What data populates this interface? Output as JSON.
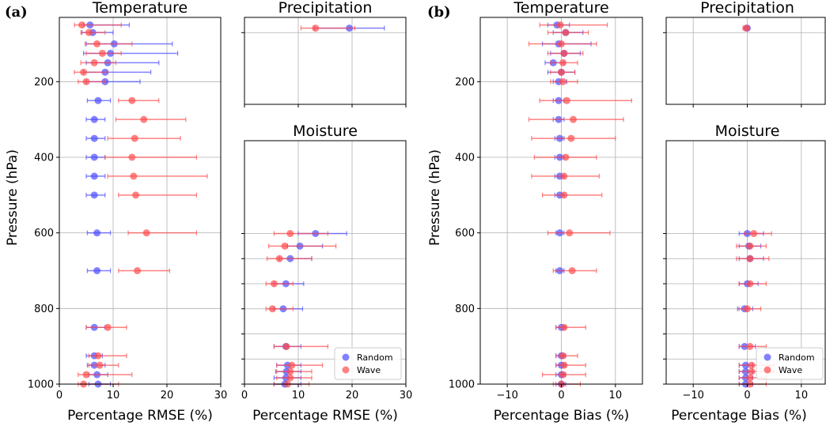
{
  "figure": {
    "panel_labels": [
      "(a)",
      "(b)"
    ],
    "ylabel": "Pressure (hPa)",
    "legend": [
      {
        "name": "Random",
        "color": "#4c4cff"
      },
      {
        "name": "Wave",
        "color": "#ff4c4c"
      }
    ]
  },
  "chart_data": [
    {
      "id": "a-temp",
      "type": "scatter",
      "title": "Temperature",
      "xlabel": "Percentage RMSE (%)",
      "xlim": [
        0,
        30
      ],
      "ylim": [
        1000,
        30
      ],
      "xticks": [
        0,
        10,
        20,
        30
      ],
      "yticks": [
        200,
        400,
        600,
        800,
        1000
      ],
      "ytick_labels": true,
      "series": [
        {
          "name": "Random",
          "color": "#4c4cff",
          "points": [
            {
              "y": 50,
              "x": 5.7,
              "lo": 4.5,
              "hi": 13.0
            },
            {
              "y": 70,
              "x": 6.2,
              "lo": 4.2,
              "hi": 10.0
            },
            {
              "y": 100,
              "x": 10.2,
              "lo": 5.0,
              "hi": 21.0
            },
            {
              "y": 125,
              "x": 9.5,
              "lo": 4.5,
              "hi": 22.0
            },
            {
              "y": 150,
              "x": 9.0,
              "lo": 5.0,
              "hi": 18.5
            },
            {
              "y": 175,
              "x": 8.5,
              "lo": 4.5,
              "hi": 17.0
            },
            {
              "y": 200,
              "x": 8.5,
              "lo": 5.0,
              "hi": 15.0
            },
            {
              "y": 250,
              "x": 7.2,
              "lo": 5.2,
              "hi": 9.5
            },
            {
              "y": 300,
              "x": 6.5,
              "lo": 5.0,
              "hi": 8.5
            },
            {
              "y": 350,
              "x": 6.5,
              "lo": 5.0,
              "hi": 8.5
            },
            {
              "y": 400,
              "x": 6.5,
              "lo": 5.0,
              "hi": 8.5
            },
            {
              "y": 450,
              "x": 6.5,
              "lo": 5.0,
              "hi": 8.5
            },
            {
              "y": 500,
              "x": 6.5,
              "lo": 5.0,
              "hi": 8.5
            },
            {
              "y": 600,
              "x": 7.0,
              "lo": 5.2,
              "hi": 9.5
            },
            {
              "y": 700,
              "x": 7.0,
              "lo": 5.2,
              "hi": 9.5
            },
            {
              "y": 850,
              "x": 6.5,
              "lo": 5.0,
              "hi": 8.5
            },
            {
              "y": 925,
              "x": 6.5,
              "lo": 5.0,
              "hi": 8.0
            },
            {
              "y": 950,
              "x": 6.5,
              "lo": 5.2,
              "hi": 8.5
            },
            {
              "y": 975,
              "x": 7.0,
              "lo": 5.5,
              "hi": 9.0
            },
            {
              "y": 1000,
              "x": 7.2,
              "lo": 5.5,
              "hi": 9.5
            }
          ]
        },
        {
          "name": "Wave",
          "color": "#ff4c4c",
          "points": [
            {
              "y": 50,
              "x": 4.2,
              "lo": 2.8,
              "hi": 11.5
            },
            {
              "y": 70,
              "x": 5.5,
              "lo": 4.0,
              "hi": 8.5
            },
            {
              "y": 100,
              "x": 7.0,
              "lo": 4.8,
              "hi": 13.5
            },
            {
              "y": 125,
              "x": 8.0,
              "lo": 5.0,
              "hi": 11.5
            },
            {
              "y": 150,
              "x": 6.5,
              "lo": 4.0,
              "hi": 10.5
            },
            {
              "y": 175,
              "x": 4.5,
              "lo": 2.8,
              "hi": 9.0
            },
            {
              "y": 200,
              "x": 5.0,
              "lo": 3.5,
              "hi": 8.5
            },
            {
              "y": 250,
              "x": 13.5,
              "lo": 11.0,
              "hi": 18.5
            },
            {
              "y": 300,
              "x": 15.7,
              "lo": 10.5,
              "hi": 23.5
            },
            {
              "y": 350,
              "x": 14.0,
              "lo": 9.0,
              "hi": 22.5
            },
            {
              "y": 400,
              "x": 13.5,
              "lo": 8.5,
              "hi": 25.5
            },
            {
              "y": 450,
              "x": 13.8,
              "lo": 9.0,
              "hi": 27.5
            },
            {
              "y": 500,
              "x": 14.2,
              "lo": 11.0,
              "hi": 25.5
            },
            {
              "y": 600,
              "x": 16.2,
              "lo": 12.8,
              "hi": 25.5
            },
            {
              "y": 700,
              "x": 14.5,
              "lo": 11.0,
              "hi": 20.5
            },
            {
              "y": 850,
              "x": 9.0,
              "lo": 5.0,
              "hi": 12.5
            },
            {
              "y": 925,
              "x": 7.2,
              "lo": 5.5,
              "hi": 12.5
            },
            {
              "y": 950,
              "x": 7.5,
              "lo": 5.5,
              "hi": 11.0
            },
            {
              "y": 975,
              "x": 5.0,
              "lo": 3.5,
              "hi": 13.5
            },
            {
              "y": 1000,
              "x": 4.5,
              "lo": 3.5,
              "hi": 11.0
            }
          ]
        }
      ]
    },
    {
      "id": "a-precip",
      "type": "scatter",
      "title": "Precipitation",
      "xlabel": "",
      "xlim": [
        0,
        30
      ],
      "ylim": [
        1000,
        30
      ],
      "xticks": [
        0,
        10,
        20,
        30
      ],
      "yticks": [
        200
      ],
      "ytick_labels": false,
      "series": [
        {
          "name": "Random",
          "color": "#4c4cff",
          "points": [
            {
              "y": 150,
              "x": 19.5,
              "lo": 13.0,
              "hi": 26.0
            }
          ]
        },
        {
          "name": "Wave",
          "color": "#ff4c4c",
          "points": [
            {
              "y": 150,
              "x": 13.2,
              "lo": 10.5,
              "hi": 20.5
            }
          ]
        }
      ]
    },
    {
      "id": "a-moist",
      "type": "scatter",
      "title": "Moisture",
      "xlabel": "Percentage RMSE (%)",
      "xlim": [
        0,
        30
      ],
      "ylim": [
        1000,
        30
      ],
      "xticks": [
        0,
        10,
        20,
        30
      ],
      "yticks": [
        400,
        500,
        600,
        700,
        800,
        900,
        1000
      ],
      "ytick_labels": false,
      "legend": true,
      "series": [
        {
          "name": "Random",
          "color": "#4c4cff",
          "points": [
            {
              "y": 400,
              "x": 13.2,
              "lo": 10.0,
              "hi": 19.0
            },
            {
              "y": 450,
              "x": 10.3,
              "lo": 8.0,
              "hi": 14.5
            },
            {
              "y": 500,
              "x": 8.5,
              "lo": 6.5,
              "hi": 12.5
            },
            {
              "y": 600,
              "x": 7.7,
              "lo": 5.5,
              "hi": 11.0
            },
            {
              "y": 700,
              "x": 7.2,
              "lo": 5.5,
              "hi": 10.8
            },
            {
              "y": 850,
              "x": 7.7,
              "lo": 5.5,
              "hi": 10.5
            },
            {
              "y": 925,
              "x": 8.0,
              "lo": 6.0,
              "hi": 10.5
            },
            {
              "y": 950,
              "x": 7.8,
              "lo": 5.8,
              "hi": 10.5
            },
            {
              "y": 975,
              "x": 7.7,
              "lo": 5.5,
              "hi": 10.5
            },
            {
              "y": 1000,
              "x": 7.5,
              "lo": 5.5,
              "hi": 10.5
            }
          ]
        },
        {
          "name": "Wave",
          "color": "#ff4c4c",
          "points": [
            {
              "y": 400,
              "x": 8.5,
              "lo": 5.5,
              "hi": 15.5
            },
            {
              "y": 450,
              "x": 7.5,
              "lo": 4.5,
              "hi": 17.0
            },
            {
              "y": 500,
              "x": 6.5,
              "lo": 4.2,
              "hi": 12.5
            },
            {
              "y": 600,
              "x": 5.5,
              "lo": 4.0,
              "hi": 9.0
            },
            {
              "y": 700,
              "x": 5.2,
              "lo": 4.0,
              "hi": 9.0
            },
            {
              "y": 850,
              "x": 7.8,
              "lo": 5.5,
              "hi": 15.5
            },
            {
              "y": 925,
              "x": 8.8,
              "lo": 6.0,
              "hi": 14.5
            },
            {
              "y": 950,
              "x": 8.5,
              "lo": 6.0,
              "hi": 12.5
            },
            {
              "y": 975,
              "x": 8.5,
              "lo": 6.0,
              "hi": 12.5
            },
            {
              "y": 1000,
              "x": 8.0,
              "lo": 5.5,
              "hi": 12.0
            }
          ]
        }
      ]
    },
    {
      "id": "b-temp",
      "type": "scatter",
      "title": "Temperature",
      "xlabel": "Percentage Bias (%)",
      "xlim": [
        -15,
        15
      ],
      "ylim": [
        1000,
        30
      ],
      "xticks": [
        -10,
        0,
        10
      ],
      "yticks": [
        200,
        400,
        600,
        800,
        1000
      ],
      "ytick_labels": true,
      "series": [
        {
          "name": "Random",
          "color": "#4c4cff",
          "points": [
            {
              "y": 50,
              "x": -0.8,
              "lo": -2.5,
              "hi": 1.5
            },
            {
              "y": 70,
              "x": 0.8,
              "lo": -1.5,
              "hi": 4.0
            },
            {
              "y": 100,
              "x": -0.5,
              "lo": -3.5,
              "hi": 5.5
            },
            {
              "y": 125,
              "x": 0.5,
              "lo": -2.0,
              "hi": 3.5
            },
            {
              "y": 150,
              "x": -1.5,
              "lo": -3.0,
              "hi": 0.5
            },
            {
              "y": 175,
              "x": 0.0,
              "lo": -2.5,
              "hi": 2.5
            },
            {
              "y": 200,
              "x": -0.5,
              "lo": -1.5,
              "hi": 1.0
            },
            {
              "y": 250,
              "x": -0.5,
              "lo": -1.5,
              "hi": 0.5
            },
            {
              "y": 300,
              "x": -0.5,
              "lo": -1.5,
              "hi": 0.5
            },
            {
              "y": 350,
              "x": -0.3,
              "lo": -1.2,
              "hi": 0.5
            },
            {
              "y": 400,
              "x": -0.3,
              "lo": -1.2,
              "hi": 0.5
            },
            {
              "y": 450,
              "x": -0.3,
              "lo": -1.2,
              "hi": 0.5
            },
            {
              "y": 500,
              "x": -0.3,
              "lo": -1.2,
              "hi": 0.5
            },
            {
              "y": 600,
              "x": -0.3,
              "lo": -1.0,
              "hi": 0.5
            },
            {
              "y": 700,
              "x": -0.3,
              "lo": -1.0,
              "hi": 0.5
            },
            {
              "y": 850,
              "x": 0.0,
              "lo": -1.0,
              "hi": 0.8
            },
            {
              "y": 925,
              "x": 0.0,
              "lo": -1.0,
              "hi": 0.8
            },
            {
              "y": 950,
              "x": 0.0,
              "lo": -1.0,
              "hi": 0.8
            },
            {
              "y": 975,
              "x": 0.0,
              "lo": -1.0,
              "hi": 0.8
            },
            {
              "y": 1000,
              "x": 0.0,
              "lo": -1.0,
              "hi": 0.8
            }
          ]
        },
        {
          "name": "Wave",
          "color": "#ff4c4c",
          "points": [
            {
              "y": 50,
              "x": -0.2,
              "lo": -4.0,
              "hi": 8.5
            },
            {
              "y": 70,
              "x": 0.8,
              "lo": -2.5,
              "hi": 5.0
            },
            {
              "y": 100,
              "x": 0.0,
              "lo": -6.0,
              "hi": 6.5
            },
            {
              "y": 125,
              "x": 0.5,
              "lo": -2.5,
              "hi": 4.0
            },
            {
              "y": 150,
              "x": 0.3,
              "lo": -2.0,
              "hi": 3.0
            },
            {
              "y": 175,
              "x": 0.0,
              "lo": -2.0,
              "hi": 2.5
            },
            {
              "y": 200,
              "x": 0.3,
              "lo": -2.0,
              "hi": 3.0
            },
            {
              "y": 250,
              "x": 1.0,
              "lo": -4.0,
              "hi": 13.0
            },
            {
              "y": 300,
              "x": 2.2,
              "lo": -6.0,
              "hi": 11.5
            },
            {
              "y": 350,
              "x": 1.8,
              "lo": -5.5,
              "hi": 10.0
            },
            {
              "y": 400,
              "x": 0.8,
              "lo": -5.0,
              "hi": 6.5
            },
            {
              "y": 450,
              "x": 0.5,
              "lo": -5.5,
              "hi": 7.0
            },
            {
              "y": 500,
              "x": 0.5,
              "lo": -3.5,
              "hi": 7.5
            },
            {
              "y": 600,
              "x": 1.5,
              "lo": -2.5,
              "hi": 9.0
            },
            {
              "y": 700,
              "x": 2.0,
              "lo": -1.5,
              "hi": 6.5
            },
            {
              "y": 850,
              "x": 0.5,
              "lo": -1.0,
              "hi": 4.5
            },
            {
              "y": 925,
              "x": 0.3,
              "lo": -1.0,
              "hi": 3.0
            },
            {
              "y": 950,
              "x": 0.5,
              "lo": -1.0,
              "hi": 4.5
            },
            {
              "y": 975,
              "x": 0.3,
              "lo": -3.5,
              "hi": 4.5
            },
            {
              "y": 1000,
              "x": 0.0,
              "lo": -1.5,
              "hi": 3.5
            }
          ]
        }
      ]
    },
    {
      "id": "b-precip",
      "type": "scatter",
      "title": "Precipitation",
      "xlabel": "",
      "xlim": [
        -15,
        15
      ],
      "ylim": [
        1000,
        30
      ],
      "xticks": [
        -10,
        0,
        10
      ],
      "yticks": [
        200
      ],
      "ytick_labels": false,
      "series": [
        {
          "name": "Random",
          "color": "#4c4cff",
          "points": [
            {
              "y": 150,
              "x": 0.0,
              "lo": -0.5,
              "hi": 0.3
            }
          ]
        },
        {
          "name": "Wave",
          "color": "#ff4c4c",
          "points": [
            {
              "y": 150,
              "x": -0.2,
              "lo": -0.8,
              "hi": 0.3
            }
          ]
        }
      ]
    },
    {
      "id": "b-moist",
      "type": "scatter",
      "title": "Moisture",
      "xlabel": "Percentage Bias (%)",
      "xlim": [
        -15,
        15
      ],
      "ylim": [
        1000,
        30
      ],
      "xticks": [
        -10,
        0,
        10
      ],
      "yticks": [
        400,
        500,
        600,
        700,
        800,
        900,
        1000
      ],
      "ytick_labels": false,
      "legend": true,
      "series": [
        {
          "name": "Random",
          "color": "#4c4cff",
          "points": [
            {
              "y": 400,
              "x": 0.0,
              "lo": -1.5,
              "hi": 3.0
            },
            {
              "y": 450,
              "x": 0.3,
              "lo": -1.5,
              "hi": 2.5
            },
            {
              "y": 500,
              "x": 0.5,
              "lo": -1.5,
              "hi": 3.0
            },
            {
              "y": 600,
              "x": 0.0,
              "lo": -1.5,
              "hi": 2.0
            },
            {
              "y": 700,
              "x": -0.5,
              "lo": -1.8,
              "hi": 1.0
            },
            {
              "y": 850,
              "x": -0.5,
              "lo": -1.5,
              "hi": 1.5
            },
            {
              "y": 925,
              "x": -0.3,
              "lo": -1.5,
              "hi": 1.0
            },
            {
              "y": 950,
              "x": -0.3,
              "lo": -1.5,
              "hi": 1.0
            },
            {
              "y": 975,
              "x": -0.3,
              "lo": -1.5,
              "hi": 1.0
            },
            {
              "y": 1000,
              "x": -0.3,
              "lo": -1.5,
              "hi": 1.0
            }
          ]
        },
        {
          "name": "Wave",
          "color": "#ff4c4c",
          "points": [
            {
              "y": 400,
              "x": 1.2,
              "lo": -0.5,
              "hi": 4.5
            },
            {
              "y": 450,
              "x": 0.5,
              "lo": -2.0,
              "hi": 3.5
            },
            {
              "y": 500,
              "x": 0.5,
              "lo": -2.0,
              "hi": 4.0
            },
            {
              "y": 600,
              "x": 0.5,
              "lo": -1.5,
              "hi": 3.5
            },
            {
              "y": 700,
              "x": 0.0,
              "lo": -1.5,
              "hi": 2.5
            },
            {
              "y": 850,
              "x": 0.5,
              "lo": -1.5,
              "hi": 3.5
            },
            {
              "y": 925,
              "x": 0.8,
              "lo": -1.5,
              "hi": 5.0
            },
            {
              "y": 950,
              "x": 0.8,
              "lo": -1.5,
              "hi": 5.0
            },
            {
              "y": 975,
              "x": 0.5,
              "lo": -1.5,
              "hi": 3.5
            },
            {
              "y": 1000,
              "x": 0.5,
              "lo": -1.5,
              "hi": 3.5
            }
          ]
        }
      ]
    }
  ]
}
